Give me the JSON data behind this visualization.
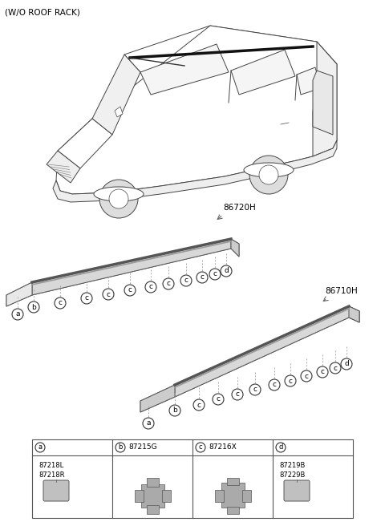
{
  "title": "(W/O ROOF RACK)",
  "part_label_86720H": "86720H",
  "part_label_86710H": "86710H",
  "bg_color": "#ffffff",
  "text_color": "#000000",
  "part_a_codes": [
    "87218L",
    "87218R"
  ],
  "part_b_code": "87215G",
  "part_c_code": "87216X",
  "part_d_codes": [
    "87219B",
    "87229B"
  ],
  "line_color": "#666666",
  "molding_fill": "#e0e0e0",
  "molding_edge": "#555555",
  "molding_top_color": "#888888",
  "car_edge": "#444444"
}
